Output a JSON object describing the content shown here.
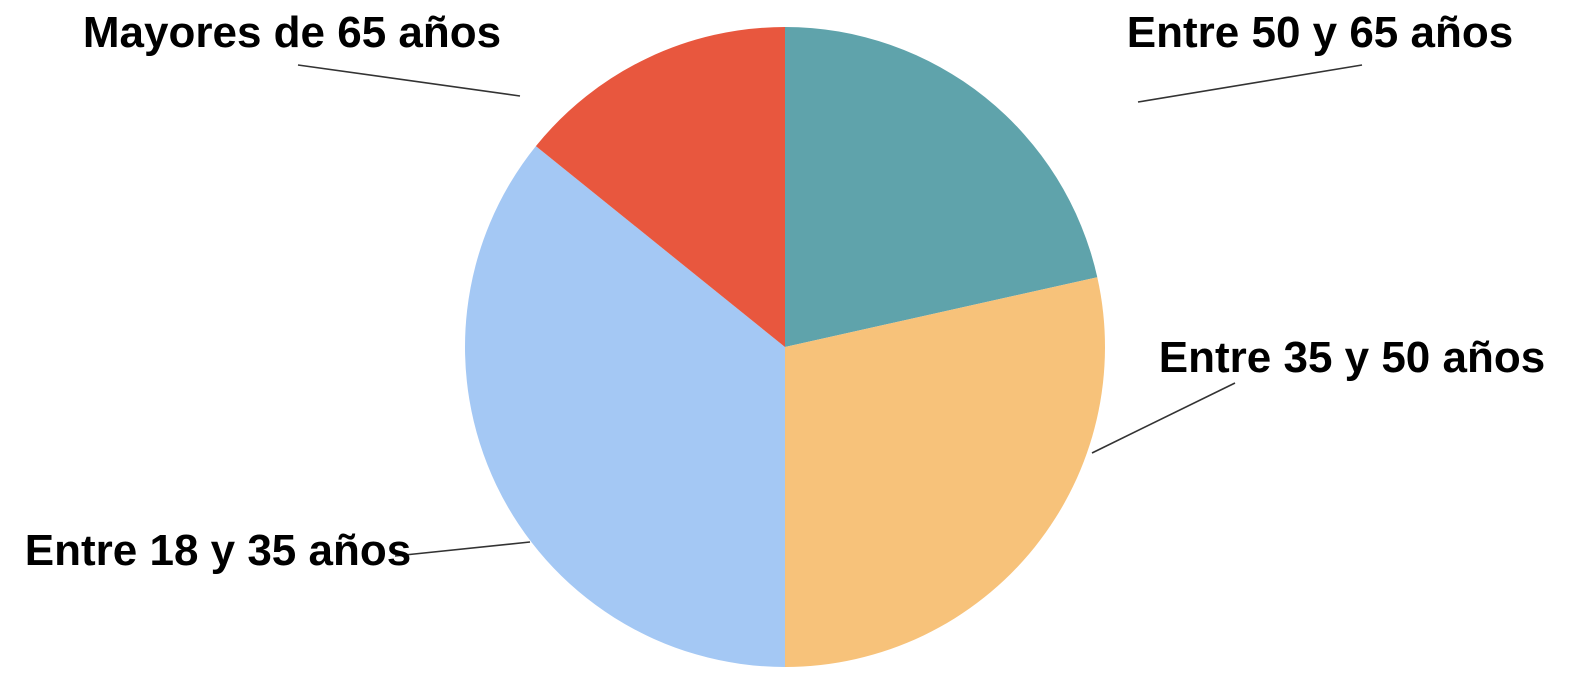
{
  "chart_data": {
    "type": "pie",
    "start": "12 o'clock",
    "direction": "clockwise",
    "legend": "none",
    "slices": [
      {
        "label": "Entre 50 y 65 años",
        "value": 21.5,
        "color": "#5fa3ab"
      },
      {
        "label": "Entre 35 y 50 años",
        "value": 28.5,
        "color": "#f7c27a"
      },
      {
        "label": "Entre 18 y 35 años",
        "value": 35.8,
        "color": "#a4c8f4"
      },
      {
        "label": "Mayores de 65 años",
        "value": 14.2,
        "color": "#e8573e"
      }
    ]
  }
}
